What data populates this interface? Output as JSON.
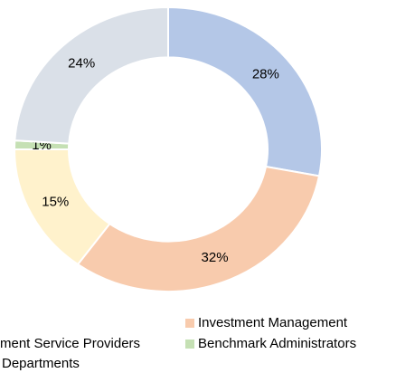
{
  "chart_data": {
    "type": "donut",
    "categories": [
      null,
      "Investment Management",
      "ment Service Providers",
      "Benchmark Administrators",
      "Departments"
    ],
    "values": [
      28,
      32,
      15,
      1,
      24
    ],
    "value_labels": [
      "28%",
      "32%",
      "15%",
      "1%",
      "24%"
    ],
    "colors": [
      "#b4c7e7",
      "#f8cbad",
      "#fff2cc",
      "#c5e0b4",
      "#dae0e8"
    ],
    "legend": "bottom"
  }
}
